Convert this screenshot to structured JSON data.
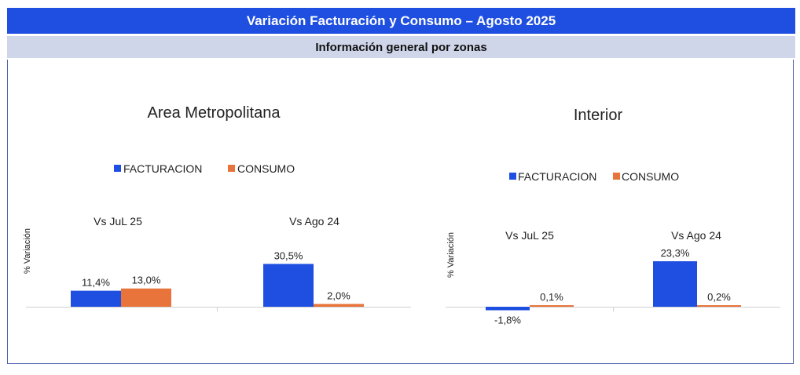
{
  "header": {
    "title": "Variación Facturación y Consumo –  Agosto 2025",
    "subtitle": "Información general por zonas"
  },
  "colors": {
    "facturacion": "#1f4fe0",
    "consumo": "#e8743b"
  },
  "chart_data": [
    {
      "type": "bar",
      "title": "Area Metropolitana",
      "ylabel": "% Variación",
      "categories": [
        "Vs JuL 25",
        "Vs Ago 24"
      ],
      "series": [
        {
          "name": "FACTURACION",
          "values": [
            11.4,
            30.5
          ],
          "labels": [
            "11,4%",
            "30,5%"
          ]
        },
        {
          "name": "CONSUMO",
          "values": [
            13.0,
            2.0
          ],
          "labels": [
            "13,0%",
            "2,0%"
          ]
        }
      ],
      "legend": "top-center",
      "grid": false
    },
    {
      "type": "bar",
      "title": "Interior",
      "ylabel": "% Variación",
      "categories": [
        "Vs JuL 25",
        "Vs Ago 24"
      ],
      "series": [
        {
          "name": "FACTURACION",
          "values": [
            -1.8,
            23.3
          ],
          "labels": [
            "-1,8%",
            "23,3%"
          ]
        },
        {
          "name": "CONSUMO",
          "values": [
            0.1,
            0.2
          ],
          "labels": [
            "0,1%",
            "0,2%"
          ]
        }
      ],
      "legend": "top-center",
      "grid": false
    }
  ]
}
